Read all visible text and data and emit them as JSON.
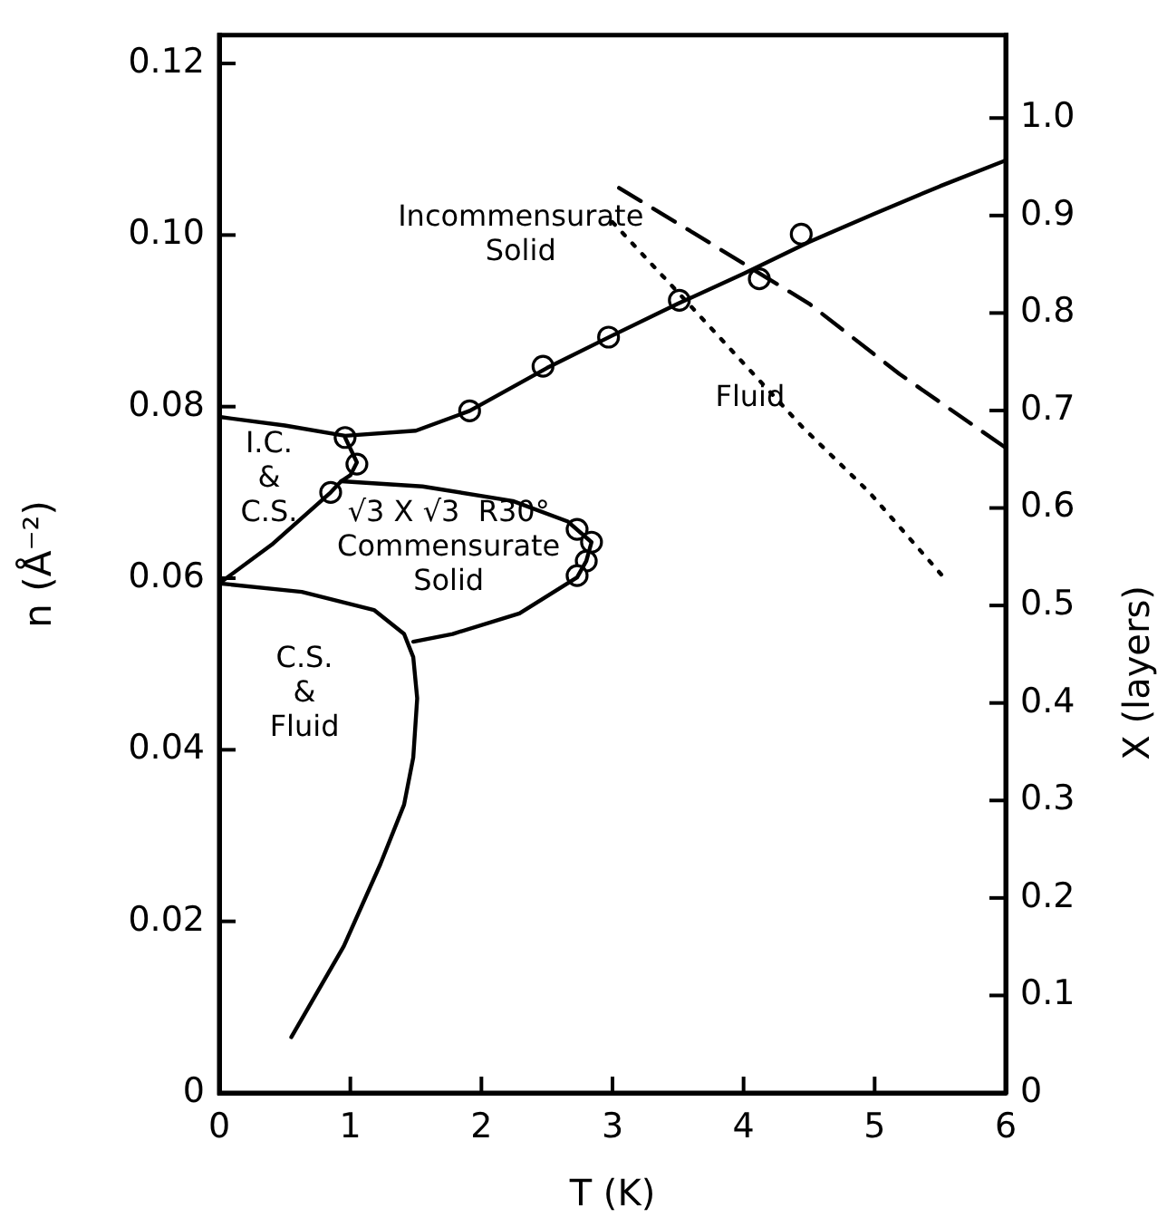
{
  "chart_data": {
    "type": "line",
    "xlabel": "T (K)",
    "ylabel": "n (Å⁻²)",
    "y2label": "X (layers)",
    "xlim": [
      0,
      6
    ],
    "xticks": [
      0,
      1,
      2,
      3,
      4,
      5,
      6
    ],
    "ylim": [
      0,
      0.1233
    ],
    "yticks": [
      0,
      0.02,
      0.04,
      0.06,
      0.08,
      {
        "value": 0.1,
        "label": "0.10"
      },
      0.12
    ],
    "y2lim": [
      0,
      1.085
    ],
    "y2ticks": [
      0,
      0.1,
      0.2,
      0.3,
      0.4,
      0.5,
      0.6,
      0.7,
      0.8,
      0.9,
      {
        "value": 1,
        "label": "1.0"
      }
    ],
    "grid": false,
    "legend": false,
    "marker": "none",
    "series": [
      {
        "type": "line",
        "color": "#000000",
        "line_style": "solid",
        "x": [
          0,
          0.5,
          0.96,
          1.5,
          1.91,
          2.5,
          3.0,
          3.5,
          4.0,
          4.5,
          5.0,
          5.5,
          6
        ],
        "values": [
          0.0788,
          0.0778,
          0.0766,
          0.0772,
          0.0795,
          0.0845,
          0.0883,
          0.092,
          0.0955,
          0.0992,
          0.1025,
          0.1057,
          0.1087
        ]
      },
      {
        "type": "line",
        "color": "#000000",
        "line_style": "solid",
        "x": [
          0.96,
          1.05,
          1.0,
          0.93,
          0.85,
          0.4,
          0
        ],
        "values": [
          0.0764,
          0.0735,
          0.072,
          0.0713,
          0.07,
          0.0639,
          0.0594
        ]
      },
      {
        "type": "line",
        "color": "#000000",
        "line_style": "solid",
        "x": [
          0.93,
          1.55,
          2.24,
          2.66,
          2.84,
          2.8,
          2.73,
          2.29,
          1.78,
          1.48
        ],
        "values": [
          0.0713,
          0.0707,
          0.069,
          0.0666,
          0.0642,
          0.062,
          0.0601,
          0.0559,
          0.0535,
          0.0526
        ]
      },
      {
        "type": "line",
        "color": "#000000",
        "line_style": "solid",
        "x": [
          0,
          0.63,
          1.18,
          1.41,
          1.48,
          1.51,
          1.48,
          1.41,
          1.23,
          0.95,
          0.55
        ],
        "values": [
          0.0594,
          0.0584,
          0.0563,
          0.0535,
          0.0508,
          0.046,
          0.0391,
          0.0336,
          0.0267,
          0.0171,
          0.0065
        ]
      },
      {
        "type": "line",
        "color": "#000000",
        "line_style": "dashed",
        "x": [
          3.05,
          3.58,
          4.5,
          5.19,
          6
        ],
        "values": [
          0.1055,
          0.1006,
          0.092,
          0.0838,
          0.0752
        ]
      },
      {
        "type": "line",
        "color": "#000000",
        "line_style": "dotted",
        "x": [
          3.0,
          3.58,
          4.45,
          4.96,
          5.51
        ],
        "values": [
          0.1015,
          0.092,
          0.0776,
          0.07,
          0.0604
        ]
      },
      {
        "type": "scatter",
        "color": "#000000",
        "marker": "circle",
        "x": [
          0.85,
          0.96,
          1.05,
          1.91,
          2.47,
          2.97,
          3.51,
          4.12,
          4.44,
          2.73,
          2.84,
          2.8,
          2.73
        ],
        "values": [
          0.07,
          0.0764,
          0.0733,
          0.0795,
          0.0847,
          0.0881,
          0.0924,
          0.0949,
          0.1001,
          0.0657,
          0.0642,
          0.062,
          0.0603
        ]
      }
    ],
    "annotations": [
      "Incommensurate\nSolid",
      "Fluid",
      "I.C.\n&\nC.S.",
      "√3 X √3  R30°\nCommensurate\nSolid",
      "C.S.\n&\nFluid"
    ]
  }
}
